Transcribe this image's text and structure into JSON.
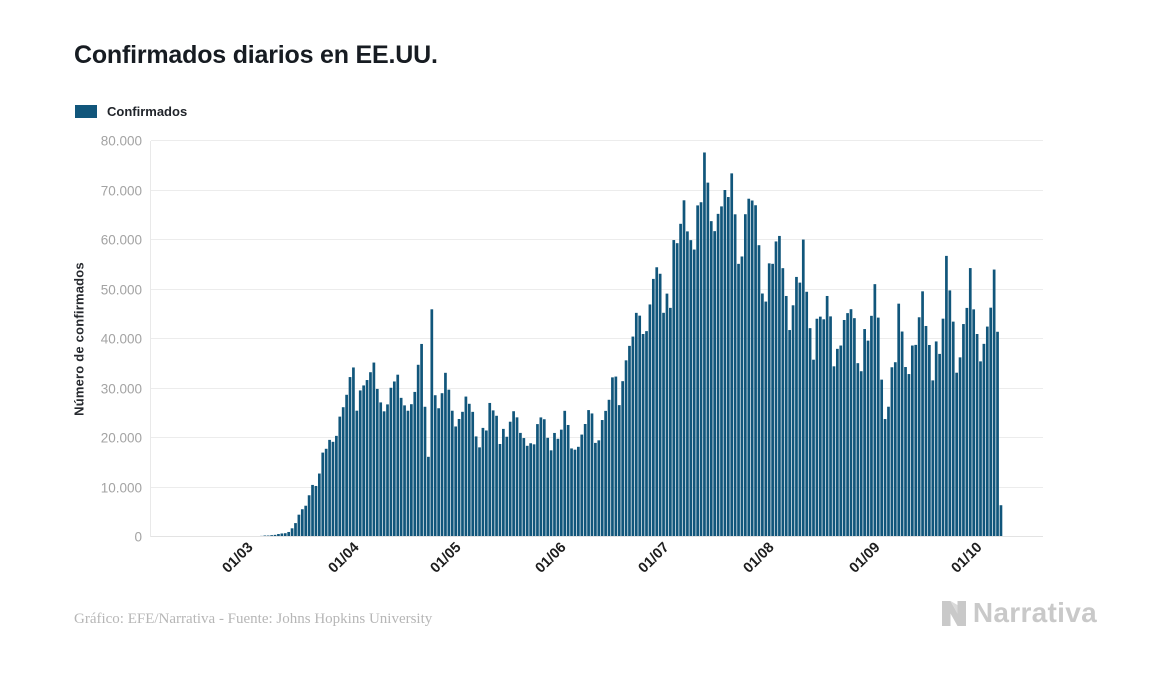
{
  "title": "Confirmados diarios en EE.UU.",
  "legend": {
    "label": "Confirmados",
    "swatch_color": "#11567b"
  },
  "footer": {
    "credit": "Gráfico: EFE/Narrativa - Fuente: Johns Hopkins University",
    "brand": "Narrativa"
  },
  "chart_data": {
    "type": "bar",
    "title": "Confirmados diarios en EE.UU.",
    "series_name": "Confirmados",
    "xlabel": "",
    "ylabel": "Número de confirmados",
    "ylim": [
      0,
      80000
    ],
    "y_ticks": [
      0,
      10000,
      20000,
      30000,
      40000,
      50000,
      60000,
      70000,
      80000
    ],
    "y_tick_labels": [
      "0",
      "10.000",
      "20.000",
      "30.000",
      "40.000",
      "50.000",
      "60.000",
      "70.000",
      "80.000"
    ],
    "grid": "horizontal",
    "legend_position": "top-left",
    "bar_color": "#11567b",
    "x_range_daily": "05/02/2020 - 11/10/2020",
    "x_tick_labels": [
      "01/03",
      "01/04",
      "01/05",
      "01/06",
      "01/07",
      "01/08",
      "01/09",
      "01/10"
    ],
    "x_tick_indices": [
      25,
      56,
      86,
      117,
      147,
      178,
      209,
      239
    ],
    "values": [
      0,
      0,
      0,
      0,
      0,
      0,
      1,
      2,
      1,
      0,
      0,
      0,
      0,
      1,
      0,
      0,
      3,
      1,
      0,
      0,
      0,
      0,
      0,
      6,
      18,
      70,
      25,
      75,
      85,
      115,
      160,
      175,
      225,
      300,
      295,
      370,
      435,
      600,
      715,
      765,
      1015,
      1755,
      2810,
      4510,
      5610,
      6320,
      8430,
      10520,
      10310,
      12820,
      17050,
      17820,
      19620,
      19230,
      20430,
      24320,
      26220,
      28730,
      32310,
      34250,
      25520,
      29610,
      30620,
      31710,
      33290,
      35240,
      29920,
      27190,
      25390,
      26790,
      30150,
      31420,
      32790,
      28110,
      26590,
      25510,
      26830,
      29310,
      34790,
      39000,
      26310,
      16200,
      46000,
      28640,
      26010,
      29050,
      33170,
      29760,
      25510,
      22330,
      23840,
      25290,
      28370,
      26910,
      25280,
      20320,
      18110,
      22040,
      21520,
      27080,
      25580,
      24490,
      18790,
      21840,
      20250,
      23290,
      25410,
      24170,
      21030,
      19990,
      18420,
      18940,
      18720,
      22810,
      24160,
      23790,
      20040,
      17510,
      21020,
      19840,
      21690,
      25490,
      22630,
      17890,
      17640,
      18220,
      20690,
      22830,
      25640,
      24960,
      19010,
      19530,
      23630,
      25480,
      27720,
      32250,
      32410,
      26640,
      31480,
      35690,
      38610,
      40490,
      45280,
      44720,
      41010,
      41590,
      46980,
      52140,
      54490,
      53180,
      45290,
      49170,
      46290,
      59990,
      59360,
      63270,
      68020,
      61740,
      59970,
      58070,
      66990,
      67630,
      77680,
      71590,
      63810,
      61790,
      65280,
      66790,
      70100,
      68680,
      73460,
      65190,
      55180,
      56670,
      65210,
      68340,
      67980,
      67020,
      58950,
      49190,
      47560,
      55280,
      55190,
      59710,
      60820,
      54310,
      48690,
      41810,
      46810,
      52540,
      51390,
      60090,
      49540,
      42190,
      35820,
      44090,
      44520,
      43980,
      48690,
      44570,
      34480,
      38010,
      38680,
      43840,
      45230,
      46020,
      44210,
      35120,
      33490,
      42010,
      39670,
      44680,
      51080,
      44320,
      31790,
      23830,
      26320,
      34290,
      35310,
      47140,
      41510,
      34340,
      32920,
      38680,
      38810,
      44390,
      49630,
      42630,
      38790,
      31640,
      39510,
      36990,
      44110,
      56790,
      49820,
      43510,
      33190,
      36290,
      43020,
      46280,
      54330,
      45990,
      41010,
      35480,
      39020,
      42510,
      46330,
      54030,
      41460,
      6420
    ]
  }
}
